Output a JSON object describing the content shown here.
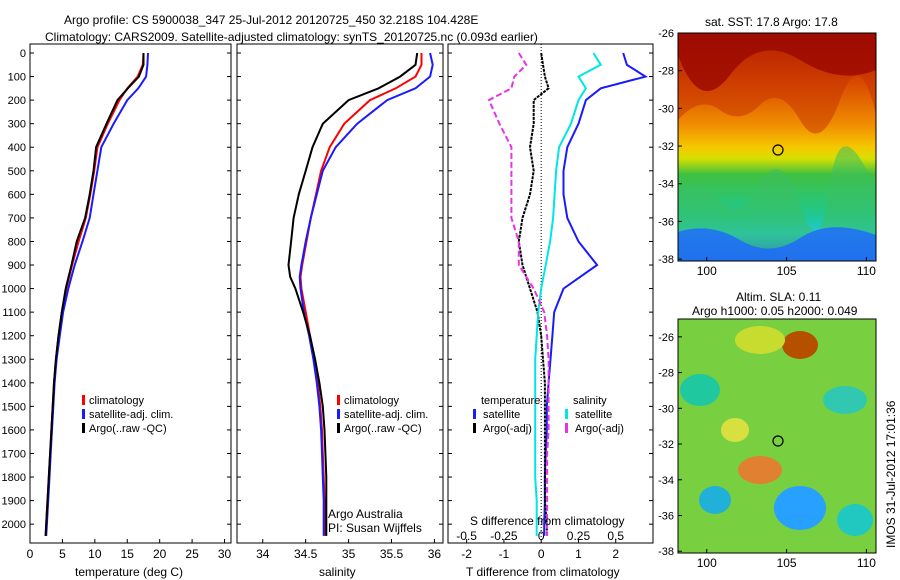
{
  "header": {
    "line1": "Argo profile: CS 5900038_347 25-Jul-2012 20120725_450 32.218S 104.428E",
    "line2": "Climatology: CARS2009. Satellite-adjusted climatology: synTS_20120725.nc (0.093d earlier)"
  },
  "footer": {
    "stamp": "IMOS 31-Jul-2012 17:01:36",
    "agency": "Argo Australia",
    "pi": "PI: Susan Wijffels"
  },
  "colors": {
    "climatology": "#ff0000",
    "satellite": "#1a1aff",
    "argo": "#000000",
    "sal_satellite": "#00e5e5",
    "sal_argo": "#e633e6"
  },
  "chart_data": [
    {
      "type": "line",
      "panel": "temperature",
      "xlabel": "temperature (deg C)",
      "xlim": [
        0,
        31
      ],
      "xticks": [
        "0",
        "5",
        "10",
        "15",
        "20",
        "25",
        "30"
      ],
      "ylim": [
        2100,
        0
      ],
      "yticks": [
        "0",
        "100",
        "200",
        "300",
        "400",
        "500",
        "600",
        "700",
        "800",
        "900",
        "1000",
        "1100",
        "1200",
        "1300",
        "1400",
        "1500",
        "1600",
        "1700",
        "1800",
        "1900",
        "2000"
      ],
      "legend": [
        "climatology",
        "satellite-adj. clim.",
        "Argo(..raw -QC)"
      ],
      "depth": [
        0,
        50,
        100,
        150,
        200,
        300,
        400,
        500,
        600,
        700,
        800,
        900,
        1000,
        1100,
        1200,
        1300,
        1400,
        1500,
        1600,
        1700,
        1800,
        1900,
        2000,
        2050
      ],
      "series": [
        {
          "name": "climatology",
          "color_key": "climatology",
          "values": [
            17.5,
            17.4,
            16.6,
            15.0,
            13.8,
            12.0,
            10.4,
            9.9,
            9.3,
            8.6,
            7.5,
            6.5,
            5.6,
            4.9,
            4.4,
            4.0,
            3.7,
            3.5,
            3.3,
            3.1,
            2.9,
            2.7,
            2.5,
            2.4
          ]
        },
        {
          "name": "satellite-adj. clim.",
          "color_key": "satellite",
          "values": [
            18.2,
            18.1,
            17.9,
            16.7,
            15.0,
            12.9,
            11.0,
            10.4,
            9.8,
            9.2,
            8.1,
            6.9,
            5.9,
            5.1,
            4.6,
            4.1,
            3.8,
            3.6,
            3.4,
            3.2,
            3.0,
            2.8,
            2.6,
            2.5
          ]
        },
        {
          "name": "Argo(..raw -QC)",
          "color_key": "argo",
          "values": [
            17.5,
            17.5,
            16.8,
            15.1,
            13.5,
            11.8,
            10.2,
            9.8,
            9.2,
            8.5,
            7.2,
            6.4,
            5.5,
            4.9,
            4.4,
            4.0,
            3.7,
            3.5,
            3.3,
            3.1,
            2.9,
            2.7,
            2.5,
            2.4
          ]
        }
      ]
    },
    {
      "type": "line",
      "panel": "salinity",
      "xlabel": "salinity",
      "xlim": [
        33.7,
        36.1
      ],
      "xticks": [
        "34",
        "34.5",
        "35",
        "35.5",
        "36"
      ],
      "ylim": [
        2100,
        0
      ],
      "legend": [
        "climatology",
        "satellite-adj. clim.",
        "Argo(..raw -QC)"
      ],
      "depth": [
        0,
        50,
        100,
        150,
        200,
        300,
        400,
        500,
        600,
        700,
        800,
        900,
        950,
        1000,
        1100,
        1200,
        1300,
        1400,
        1500,
        1600,
        1700,
        1800,
        1900,
        2000,
        2050
      ],
      "series": [
        {
          "name": "climatology",
          "color_key": "climatology",
          "values": [
            35.85,
            35.85,
            35.78,
            35.55,
            35.25,
            34.95,
            34.78,
            34.68,
            34.62,
            34.56,
            34.51,
            34.46,
            34.44,
            34.45,
            34.5,
            34.55,
            34.6,
            34.64,
            34.67,
            34.69,
            34.7,
            34.71,
            34.72,
            34.72,
            34.72
          ]
        },
        {
          "name": "satellite-adj. clim.",
          "color_key": "satellite",
          "values": [
            35.95,
            35.98,
            35.95,
            35.78,
            35.45,
            35.1,
            34.85,
            34.7,
            34.63,
            34.56,
            34.5,
            34.45,
            34.43,
            34.44,
            34.48,
            34.54,
            34.59,
            34.63,
            34.66,
            34.68,
            34.69,
            34.7,
            34.71,
            34.71,
            34.71
          ]
        },
        {
          "name": "Argo(..raw -QC)",
          "color_key": "argo",
          "values": [
            35.8,
            35.78,
            35.6,
            35.35,
            35.0,
            34.7,
            34.58,
            34.5,
            34.42,
            34.36,
            34.33,
            34.3,
            34.32,
            34.38,
            34.47,
            34.55,
            34.61,
            34.66,
            34.7,
            34.72,
            34.73,
            34.74,
            34.74,
            34.74,
            34.74
          ]
        }
      ]
    },
    {
      "type": "line",
      "panel": "difference",
      "xlabel": "T difference from climatology",
      "xlabel_top": "S difference from climatology",
      "xlim": [
        -2.5,
        3.0
      ],
      "xticks": [
        "-2",
        "-1",
        "0",
        "1",
        "2"
      ],
      "xticks_top": [
        "-0.5",
        "-0.25",
        "0",
        "0.25",
        "0.5"
      ],
      "ylim": [
        2100,
        0
      ],
      "legend_groups": [
        {
          "title": "temperature",
          "items": [
            "satellite",
            "Argo(-adj)"
          ]
        },
        {
          "title": "salinity",
          "items": [
            "satellite",
            "Argo(-adj)"
          ]
        }
      ],
      "depth": [
        0,
        50,
        100,
        150,
        200,
        300,
        400,
        500,
        600,
        700,
        800,
        900,
        1000,
        1100,
        1200,
        1300,
        1400,
        1500,
        1600,
        1700,
        1800,
        1900,
        2000,
        2050
      ],
      "series": [
        {
          "name": "temperature satellite",
          "color_key": "satellite",
          "values": [
            2.2,
            2.3,
            2.8,
            1.6,
            1.2,
            1.0,
            0.7,
            0.6,
            0.6,
            0.7,
            1.0,
            1.5,
            0.6,
            0.35,
            0.3,
            0.25,
            0.2,
            0.15,
            0.15,
            0.12,
            0.1,
            0.1,
            0.08,
            0.08
          ]
        },
        {
          "name": "temperature Argo(-adj)",
          "color_key": "argo",
          "values": [
            0.0,
            0.05,
            0.1,
            0.2,
            -0.2,
            -0.2,
            -0.3,
            -0.2,
            -0.3,
            -0.5,
            -0.6,
            -0.5,
            -0.3,
            -0.1,
            0.0,
            0.05,
            0.1,
            0.1,
            0.1,
            0.1,
            0.1,
            0.1,
            0.15,
            0.15
          ]
        },
        {
          "name": "salinity satellite",
          "color_key": "sal_satellite",
          "values": [
            0.35,
            0.4,
            0.25,
            0.3,
            0.25,
            0.2,
            0.12,
            0.1,
            0.09,
            0.08,
            0.06,
            0.03,
            0.0,
            -0.02,
            -0.03,
            -0.04,
            -0.04,
            -0.04,
            -0.04,
            -0.04,
            -0.04,
            -0.03,
            -0.03,
            -0.03
          ]
        },
        {
          "name": "salinity Argo(-adj)",
          "color_key": "sal_argo",
          "values": [
            -0.15,
            -0.1,
            -0.18,
            -0.2,
            -0.35,
            -0.28,
            -0.2,
            -0.2,
            -0.2,
            -0.2,
            -0.15,
            -0.15,
            -0.05,
            0.02,
            0.04,
            0.05,
            0.05,
            0.05,
            0.05,
            0.04,
            0.04,
            0.04,
            0.04,
            0.04
          ]
        }
      ]
    },
    {
      "type": "heatmap",
      "panel": "sst-map",
      "title": "sat. SST: 17.8 Argo: 17.8",
      "xticks": [
        "100",
        "105",
        "110"
      ],
      "yticks": [
        "-26",
        "-28",
        "-30",
        "-32",
        "-34",
        "-36",
        "-38"
      ],
      "xlim": [
        98.2,
        110.6
      ],
      "ylim": [
        -38.1,
        -26.0
      ],
      "argo_position": {
        "lon": 104.428,
        "lat": -32.218
      }
    },
    {
      "type": "heatmap",
      "panel": "sla-map",
      "title_line1": "Altim. SLA: 0.11",
      "title_line2": "Argo h1000: 0.05 h2000: 0.049",
      "xticks": [
        "100",
        "105",
        "110"
      ],
      "yticks": [
        "-26",
        "-28",
        "-30",
        "-32",
        "-34",
        "-36",
        "-38"
      ],
      "xlim": [
        98.2,
        110.6
      ],
      "ylim": [
        -38.1,
        -25.0
      ],
      "argo_position": {
        "lon": 104.428,
        "lat": -32.218
      }
    }
  ]
}
